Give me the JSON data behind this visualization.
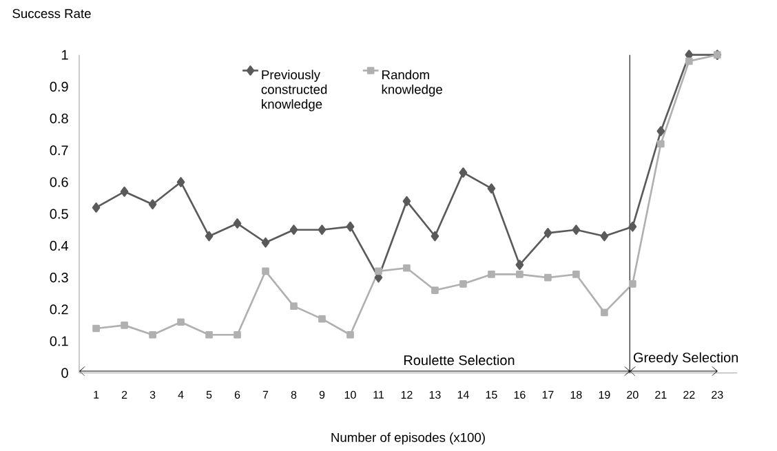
{
  "chart_data": {
    "type": "line",
    "xlabel": "Number of episodes (x100)",
    "ylabel": "Success Rate",
    "x": [
      1,
      2,
      3,
      4,
      5,
      6,
      7,
      8,
      9,
      10,
      11,
      12,
      13,
      14,
      15,
      16,
      17,
      18,
      19,
      20,
      21,
      22,
      23
    ],
    "xlim": [
      0.4,
      23.7
    ],
    "xticks": [
      1,
      2,
      3,
      4,
      5,
      6,
      7,
      8,
      9,
      10,
      11,
      12,
      13,
      14,
      15,
      16,
      17,
      18,
      19,
      20,
      21,
      22,
      23
    ],
    "ylim": [
      0,
      1
    ],
    "yticks": [
      0,
      0.1,
      0.2,
      0.3,
      0.4,
      0.5,
      0.6,
      0.7,
      0.8,
      0.9,
      1
    ],
    "series": [
      {
        "name": "Previously constructed knowledge",
        "color": "#5a5a5a",
        "marker": "diamond",
        "values": [
          0.52,
          0.57,
          0.53,
          0.6,
          0.43,
          0.47,
          0.41,
          0.45,
          0.45,
          0.46,
          0.3,
          0.54,
          0.43,
          0.63,
          0.58,
          0.34,
          0.44,
          0.45,
          0.43,
          0.46,
          0.76,
          1.0,
          1.0
        ]
      },
      {
        "name": "Random knowledge",
        "color": "#b0b0b0",
        "marker": "square",
        "values": [
          0.14,
          0.15,
          0.12,
          0.16,
          0.12,
          0.12,
          0.32,
          0.21,
          0.17,
          0.12,
          0.32,
          0.33,
          0.26,
          0.28,
          0.31,
          0.31,
          0.3,
          0.31,
          0.19,
          0.28,
          0.72,
          0.98,
          1.0
        ]
      }
    ],
    "ref_lines": [
      {
        "axis": "x",
        "value": 19.9
      }
    ],
    "annotations": [
      "Roulette Selection",
      "Greedy Selection"
    ],
    "legend": "top",
    "grid": false,
    "line_style": "solid"
  }
}
